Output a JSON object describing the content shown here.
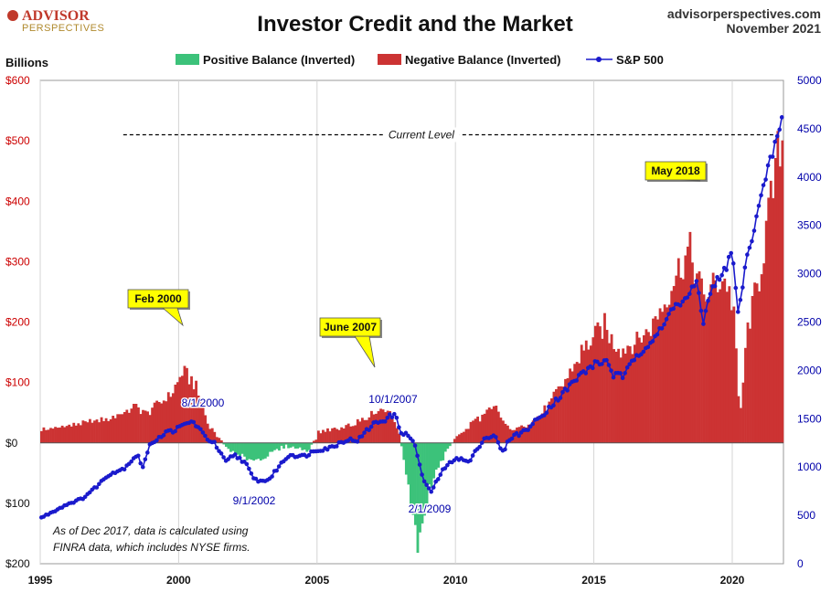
{
  "header": {
    "logo_line1": "ADVISOR",
    "logo_line2": "PERSPECTIVES",
    "title": "Investor Credit and the Market",
    "site": "advisorperspectives.com",
    "date": "November 2021"
  },
  "colors": {
    "positive": "#3cc27a",
    "negative": "#cc3333",
    "sp500": "#1a1acc",
    "left_axis_text": "#cc0000",
    "right_axis_text": "#0000aa",
    "callout_fill": "#ffff00",
    "logo_red": "#c0392b",
    "logo_gold": "#b08a2e"
  },
  "chart_data": {
    "type": "bar+line",
    "title": "Investor Credit and the Market",
    "left_axis": {
      "label": "Billions",
      "range": [
        -200,
        600
      ],
      "ticks": [
        -200,
        -100,
        0,
        100,
        200,
        300,
        400,
        500,
        600
      ],
      "tick_labels": [
        "$200",
        "$100",
        "$0",
        "$100",
        "$200",
        "$300",
        "$400",
        "$500",
        "$600"
      ]
    },
    "right_axis": {
      "range": [
        0,
        5000
      ],
      "ticks": [
        0,
        500,
        1000,
        1500,
        2000,
        2500,
        3000,
        3500,
        4000,
        4500,
        5000
      ],
      "tick_labels": [
        "0",
        "500",
        "1000",
        "1500",
        "2000",
        "2500",
        "3000",
        "3500",
        "4000",
        "4500",
        "5000"
      ]
    },
    "x_axis": {
      "range": [
        1995,
        2021.85
      ],
      "ticks": [
        1995,
        2000,
        2005,
        2010,
        2015,
        2020
      ],
      "tick_labels": [
        "1995",
        "2000",
        "2005",
        "2010",
        "2015",
        "2020"
      ]
    },
    "legend": [
      "Positive Balance (Inverted)",
      "Negative Balance (Inverted)",
      "S&P 500"
    ],
    "legend_position": "top-center",
    "grid": "vertical",
    "balance_anchors": [
      [
        1995.0,
        22
      ],
      [
        1995.5,
        24
      ],
      [
        1996.0,
        28
      ],
      [
        1996.5,
        32
      ],
      [
        1997.0,
        36
      ],
      [
        1997.5,
        42
      ],
      [
        1998.0,
        50
      ],
      [
        1998.4,
        62
      ],
      [
        1998.8,
        48
      ],
      [
        1999.2,
        65
      ],
      [
        1999.6,
        78
      ],
      [
        1999.9,
        95
      ],
      [
        2000.1,
        118
      ],
      [
        2000.5,
        100
      ],
      [
        2000.8,
        65
      ],
      [
        2001.0,
        30
      ],
      [
        2001.3,
        15
      ],
      [
        2001.6,
        -5
      ],
      [
        2002.0,
        -18
      ],
      [
        2002.5,
        -28
      ],
      [
        2003.0,
        -25
      ],
      [
        2003.4,
        -15
      ],
      [
        2003.8,
        -5
      ],
      [
        2004.2,
        -8
      ],
      [
        2004.6,
        -12
      ],
      [
        2004.9,
        5
      ],
      [
        2005.0,
        18
      ],
      [
        2005.5,
        22
      ],
      [
        2006.0,
        28
      ],
      [
        2006.5,
        38
      ],
      [
        2007.0,
        50
      ],
      [
        2007.4,
        58
      ],
      [
        2007.7,
        42
      ],
      [
        2007.95,
        8
      ],
      [
        2008.1,
        -35
      ],
      [
        2008.4,
        -120
      ],
      [
        2008.6,
        -175
      ],
      [
        2008.8,
        -120
      ],
      [
        2009.0,
        -75
      ],
      [
        2009.3,
        -45
      ],
      [
        2009.6,
        -15
      ],
      [
        2009.9,
        5
      ],
      [
        2010.2,
        18
      ],
      [
        2010.6,
        35
      ],
      [
        2011.0,
        48
      ],
      [
        2011.4,
        58
      ],
      [
        2011.7,
        30
      ],
      [
        2012.0,
        22
      ],
      [
        2012.5,
        28
      ],
      [
        2013.0,
        45
      ],
      [
        2013.5,
        75
      ],
      [
        2014.0,
        110
      ],
      [
        2014.5,
        150
      ],
      [
        2015.0,
        175
      ],
      [
        2015.3,
        195
      ],
      [
        2015.6,
        170
      ],
      [
        2016.0,
        155
      ],
      [
        2016.5,
        168
      ],
      [
        2017.0,
        190
      ],
      [
        2017.5,
        235
      ],
      [
        2018.0,
        290
      ],
      [
        2018.4,
        320
      ],
      [
        2018.9,
        240
      ],
      [
        2019.3,
        265
      ],
      [
        2019.7,
        270
      ],
      [
        2020.0,
        220
      ],
      [
        2020.15,
        80
      ],
      [
        2020.25,
        60
      ],
      [
        2020.5,
        190
      ],
      [
        2020.9,
        270
      ],
      [
        2021.2,
        360
      ],
      [
        2021.5,
        440
      ],
      [
        2021.7,
        515
      ],
      [
        2021.8,
        480
      ]
    ],
    "sp500_anchors": [
      [
        1995.0,
        470
      ],
      [
        1995.5,
        545
      ],
      [
        1996.0,
        620
      ],
      [
        1996.5,
        670
      ],
      [
        1997.0,
        790
      ],
      [
        1997.5,
        930
      ],
      [
        1998.0,
        980
      ],
      [
        1998.5,
        1130
      ],
      [
        1998.7,
        1000
      ],
      [
        1999.0,
        1250
      ],
      [
        1999.5,
        1350
      ],
      [
        2000.0,
        1400
      ],
      [
        2000.4,
        1470
      ],
      [
        2000.6,
        1450
      ],
      [
        2000.9,
        1330
      ],
      [
        2001.3,
        1240
      ],
      [
        2001.7,
        1050
      ],
      [
        2002.0,
        1130
      ],
      [
        2002.4,
        1050
      ],
      [
        2002.7,
        880
      ],
      [
        2003.0,
        850
      ],
      [
        2003.3,
        880
      ],
      [
        2003.6,
        1000
      ],
      [
        2004.0,
        1130
      ],
      [
        2004.5,
        1110
      ],
      [
        2005.0,
        1180
      ],
      [
        2005.5,
        1200
      ],
      [
        2006.0,
        1280
      ],
      [
        2006.5,
        1280
      ],
      [
        2007.0,
        1440
      ],
      [
        2007.5,
        1500
      ],
      [
        2007.8,
        1550
      ],
      [
        2008.0,
        1380
      ],
      [
        2008.5,
        1270
      ],
      [
        2008.8,
        900
      ],
      [
        2009.1,
        735
      ],
      [
        2009.5,
        950
      ],
      [
        2010.0,
        1100
      ],
      [
        2010.5,
        1050
      ],
      [
        2011.0,
        1290
      ],
      [
        2011.4,
        1330
      ],
      [
        2011.7,
        1150
      ],
      [
        2012.0,
        1310
      ],
      [
        2012.5,
        1370
      ],
      [
        2013.0,
        1500
      ],
      [
        2013.5,
        1650
      ],
      [
        2014.0,
        1800
      ],
      [
        2014.5,
        1950
      ],
      [
        2015.0,
        2060
      ],
      [
        2015.5,
        2100
      ],
      [
        2015.7,
        1950
      ],
      [
        2016.1,
        1940
      ],
      [
        2016.5,
        2150
      ],
      [
        2017.0,
        2280
      ],
      [
        2017.5,
        2440
      ],
      [
        2018.0,
        2750
      ],
      [
        2018.1,
        2650
      ],
      [
        2018.7,
        2900
      ],
      [
        2018.95,
        2500
      ],
      [
        2019.3,
        2900
      ],
      [
        2019.6,
        2950
      ],
      [
        2020.0,
        3230
      ],
      [
        2020.2,
        2580
      ],
      [
        2020.5,
        3100
      ],
      [
        2020.9,
        3650
      ],
      [
        2021.2,
        3950
      ],
      [
        2021.5,
        4300
      ],
      [
        2021.65,
        4400
      ],
      [
        2021.75,
        4600
      ]
    ],
    "current_level": {
      "label": "Current Level",
      "value": 510,
      "x_start": 1998.0
    },
    "annotations": [
      {
        "type": "callout",
        "label": "Feb 2000",
        "x": 2000.1,
        "y": 118
      },
      {
        "type": "callout",
        "label": "June 2007",
        "x": 2007.4,
        "y": 58
      },
      {
        "type": "callout",
        "label": "May 2018",
        "x": 2018.4,
        "y": 320
      },
      {
        "type": "date",
        "label": "8/1/2000",
        "x": 2000.6,
        "y_sp": 1450
      },
      {
        "type": "date",
        "label": "9/1/2002",
        "x": 2002.7,
        "y_sp": 880
      },
      {
        "type": "date",
        "label": "10/1/2007",
        "x": 2007.8,
        "y_sp": 1550
      },
      {
        "type": "date",
        "label": "2/1/2009",
        "x": 2009.1,
        "y_sp": 735
      }
    ],
    "note_lines": [
      "As of Dec 2017,  data is calculated using",
      "FINRA data, which includes NYSE firms."
    ]
  }
}
